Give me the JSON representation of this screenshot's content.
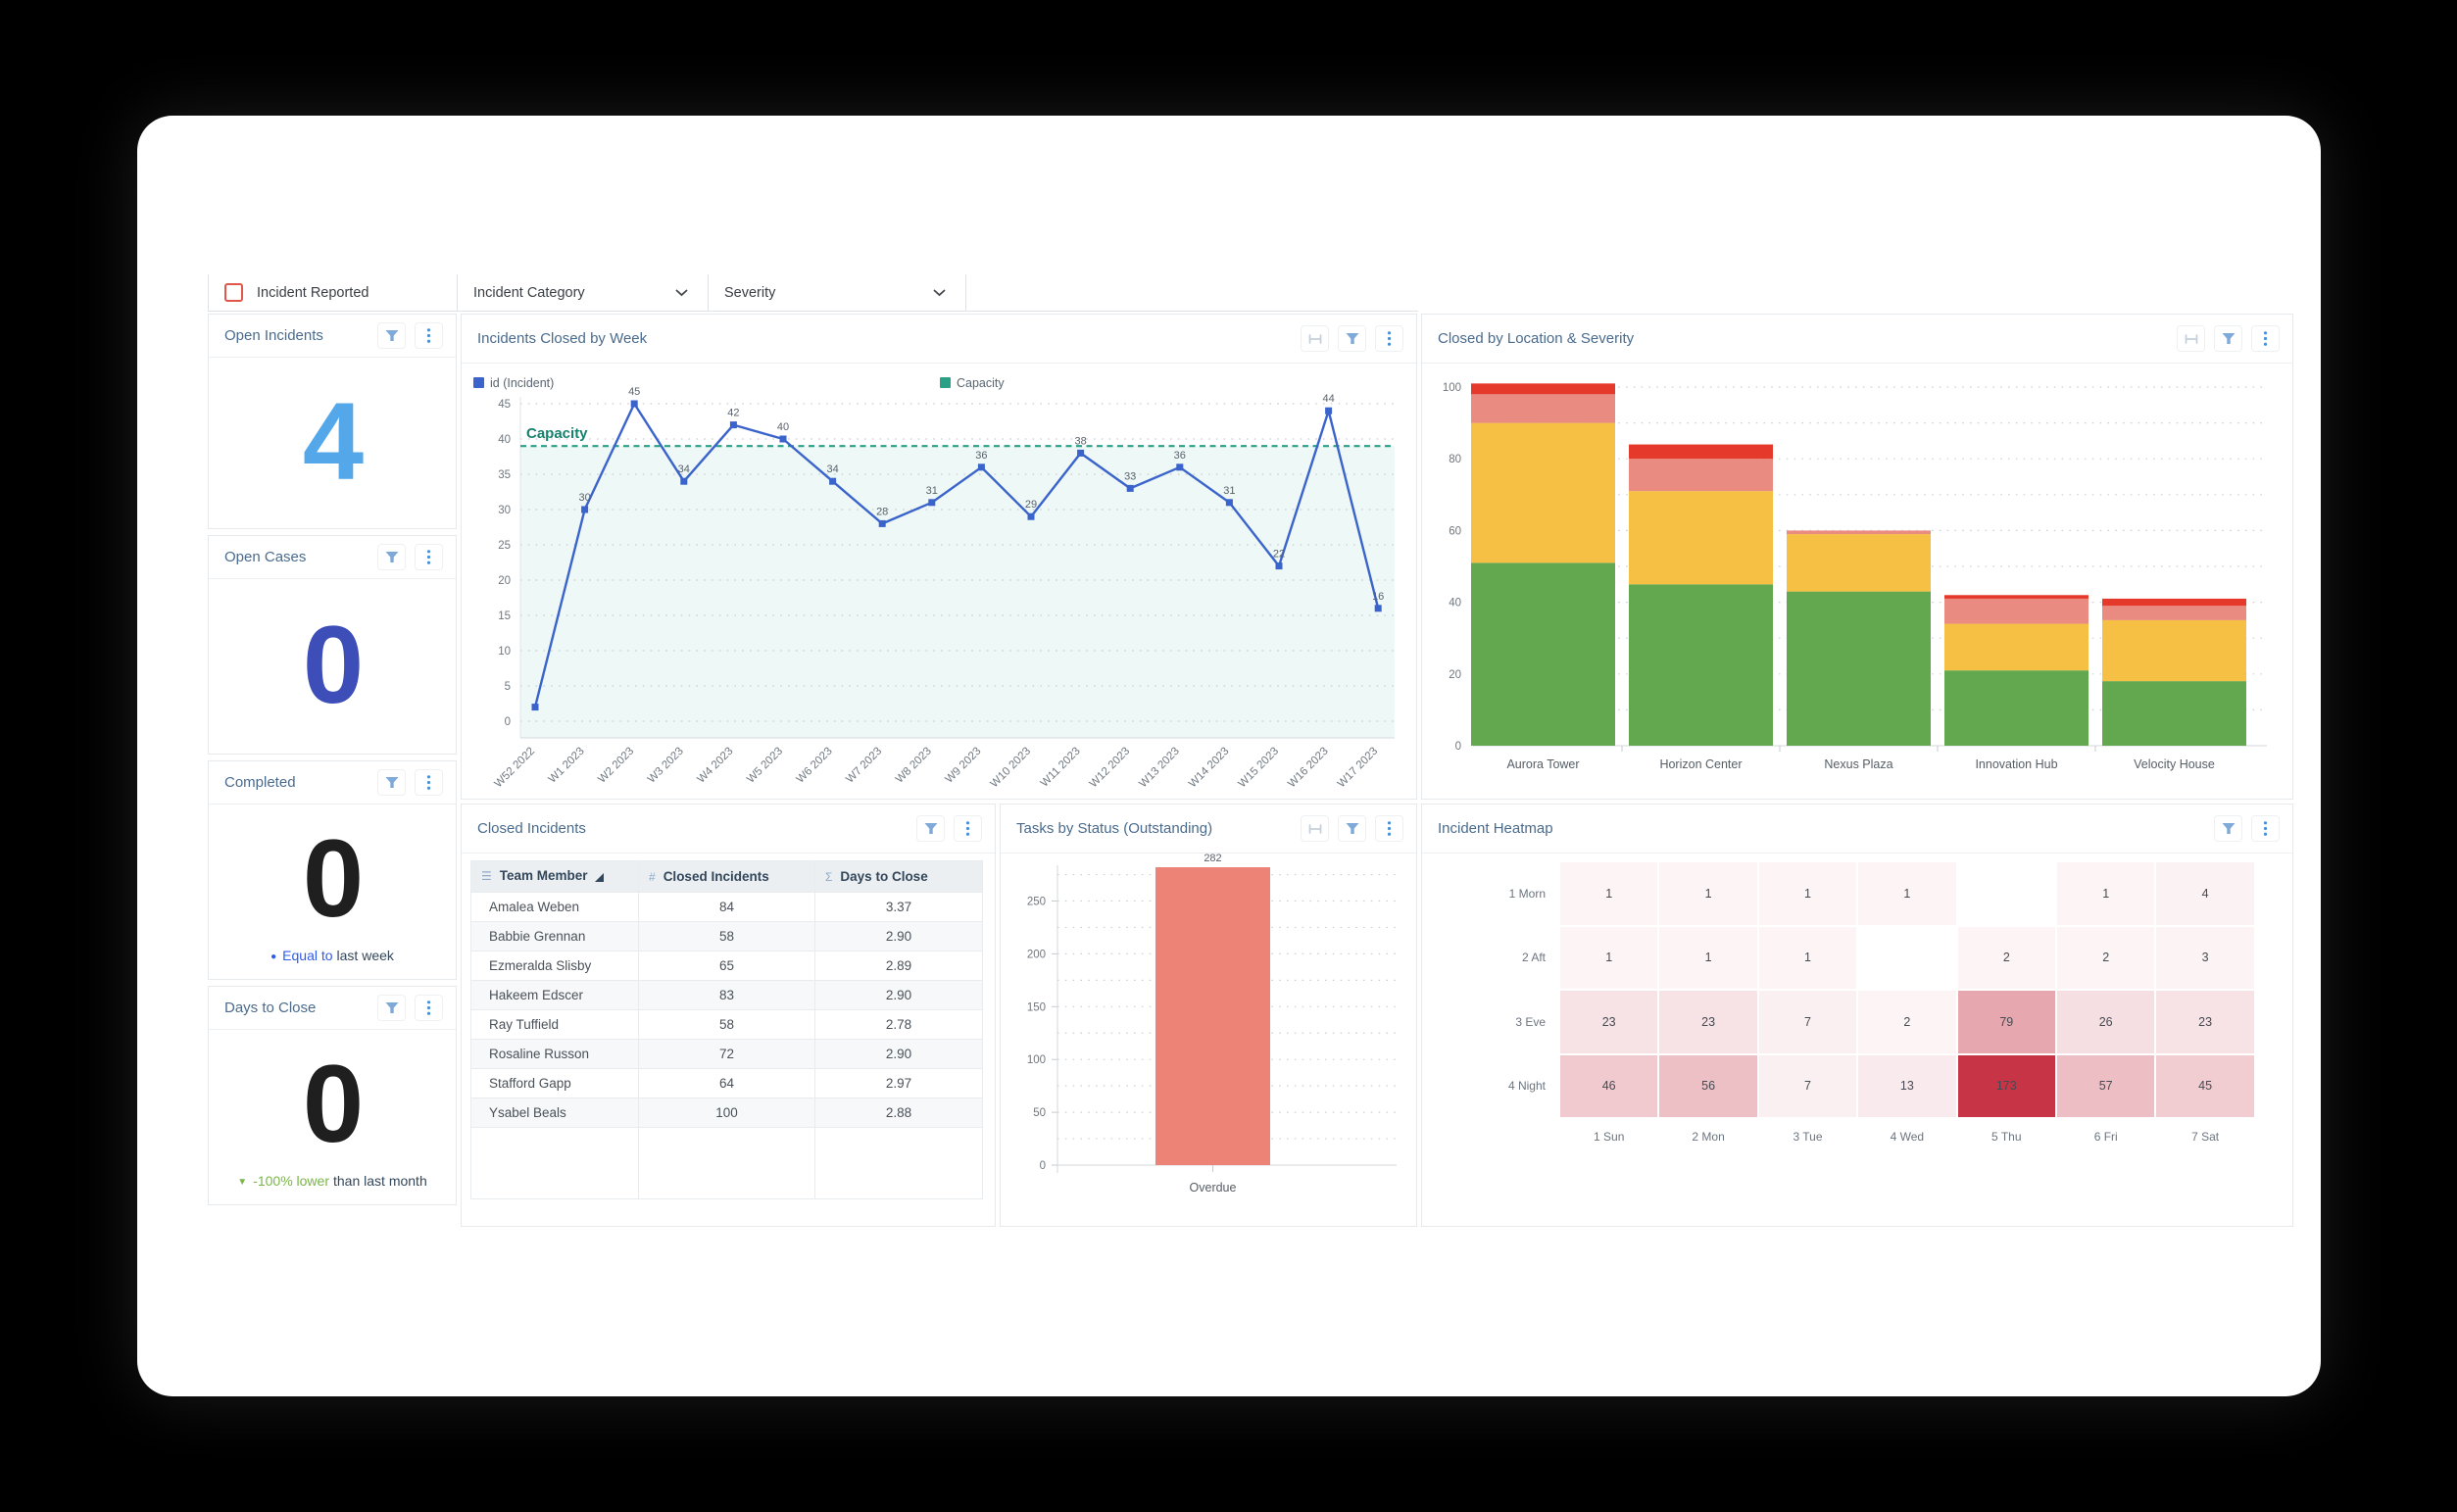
{
  "filters": {
    "incident_reported": "Incident Reported",
    "incident_category": "Incident Category",
    "severity": "Severity"
  },
  "kpis": [
    {
      "title": "Open Incidents",
      "value": "4",
      "value_color": "#54a8ea"
    },
    {
      "title": "Open Cases",
      "value": "0",
      "value_color": "#3d4eb8"
    },
    {
      "title": "Completed",
      "value": "0",
      "value_color": "#1f1f1f",
      "subtitle": {
        "marker": "●",
        "marker_color": "#2f5bea",
        "highlight": "Equal to",
        "highlight_color": "#2f5bea",
        "rest": "last week",
        "rest_color": "#33475b"
      }
    },
    {
      "title": "Days to Close",
      "value": "0",
      "value_color": "#1f1f1f",
      "subtitle": {
        "marker": "▼",
        "marker_color": "#7ab648",
        "highlight": "-100% lower",
        "highlight_color": "#7ab648",
        "rest": "than last month",
        "rest_color": "#33475b"
      }
    }
  ],
  "cards": {
    "line": {
      "title": "Incidents Closed by Week",
      "icons": [
        "fit",
        "filter",
        "kebab"
      ]
    },
    "stacked": {
      "title": "Closed by Location & Severity",
      "icons": [
        "fit",
        "filter",
        "kebab"
      ]
    },
    "table": {
      "title": "Closed Incidents",
      "icons": [
        "filter",
        "kebab"
      ]
    },
    "tasks": {
      "title": "Tasks by Status (Outstanding)",
      "icons": [
        "fit",
        "filter",
        "kebab"
      ]
    },
    "heatmap": {
      "title": "Incident Heatmap",
      "icons": [
        "filter",
        "kebab"
      ]
    },
    "kpi": {
      "icons": [
        "filter",
        "kebab"
      ]
    }
  },
  "table": {
    "columns": [
      {
        "icon": "☰",
        "label": "Team Member",
        "sorted": "asc"
      },
      {
        "icon": "#",
        "label": "Closed Incidents"
      },
      {
        "icon": "Σ",
        "label": "Days to Close"
      }
    ],
    "rows": [
      [
        "Amalea Weben",
        "84",
        "3.37"
      ],
      [
        "Babbie Grennan",
        "58",
        "2.90"
      ],
      [
        "Ezmeralda Slisby",
        "65",
        "2.89"
      ],
      [
        "Hakeem Edscer",
        "83",
        "2.90"
      ],
      [
        "Ray Tuffield",
        "58",
        "2.78"
      ],
      [
        "Rosaline Russon",
        "72",
        "2.90"
      ],
      [
        "Stafford Gapp",
        "64",
        "2.97"
      ],
      [
        "Ysabel Beals",
        "100",
        "2.88"
      ]
    ]
  },
  "chart_data": [
    {
      "id": "incidents_closed_by_week",
      "type": "line",
      "title": "Incidents Closed by Week",
      "legend": [
        {
          "label": "id (Incident)",
          "color": "#3a63cc"
        },
        {
          "label": "Capacity",
          "color": "#2aa187"
        }
      ],
      "x": [
        "W52 2022",
        "W1 2023",
        "W2 2023",
        "W3 2023",
        "W4 2023",
        "W5 2023",
        "W6 2023",
        "W7 2023",
        "W8 2023",
        "W9 2023",
        "W10 2023",
        "W11 2023",
        "W12 2023",
        "W13 2023",
        "W14 2023",
        "W15 2023",
        "W16 2023",
        "W17 2023"
      ],
      "values": [
        2,
        30,
        45,
        34,
        42,
        40,
        34,
        28,
        31,
        36,
        29,
        38,
        33,
        36,
        31,
        22,
        44,
        16
      ],
      "first_label_hidden": true,
      "capacity": 39,
      "capacity_label": "Capacity",
      "line_color": "#3a63cc",
      "capacity_color": "#2aa187",
      "band_fill": "rgba(42,160,143,0.08)",
      "ylim": [
        0,
        45
      ],
      "ytick_step": 5,
      "grid": true
    },
    {
      "id": "closed_by_location_severity",
      "type": "stacked_bar",
      "title": "Closed by Location & Severity",
      "categories": [
        "Aurora Tower",
        "Horizon Center",
        "Nexus Plaza",
        "Innovation Hub",
        "Velocity House"
      ],
      "series": [
        {
          "name": "green",
          "color": "#63a84e",
          "values": [
            51,
            45,
            43,
            21,
            18
          ]
        },
        {
          "name": "amber",
          "color": "#f5c043",
          "values": [
            39,
            26,
            16,
            13,
            17
          ]
        },
        {
          "name": "salmon",
          "color": "#e98b80",
          "values": [
            8,
            9,
            1,
            7,
            4
          ]
        },
        {
          "name": "red",
          "color": "#e5392b",
          "values": [
            3,
            4,
            0,
            1,
            2
          ]
        }
      ],
      "ylim": [
        0,
        100
      ],
      "label_step": 20,
      "grid_step": 10
    },
    {
      "id": "tasks_by_status",
      "type": "bar",
      "title": "Tasks by Status (Outstanding)",
      "categories": [
        "Overdue"
      ],
      "values": [
        282
      ],
      "bar_color": "#ed8276",
      "ylim": [
        0,
        282
      ],
      "yticks": [
        0,
        50,
        100,
        150,
        200,
        250
      ],
      "grid_step": 25
    },
    {
      "id": "incident_heatmap",
      "type": "heatmap",
      "title": "Incident Heatmap",
      "rows": [
        "1 Morn",
        "2 Aft",
        "3 Eve",
        "4 Night"
      ],
      "cols": [
        "1 Sun",
        "2 Mon",
        "3 Tue",
        "4 Wed",
        "5 Thu",
        "6 Fri",
        "7 Sat"
      ],
      "values": [
        [
          1,
          1,
          1,
          1,
          null,
          1,
          4
        ],
        [
          1,
          1,
          1,
          null,
          2,
          2,
          3
        ],
        [
          23,
          23,
          7,
          2,
          79,
          26,
          23
        ],
        [
          46,
          56,
          7,
          13,
          173,
          57,
          45
        ]
      ],
      "max": 173,
      "base_color_rgb": "198,52,70"
    }
  ]
}
